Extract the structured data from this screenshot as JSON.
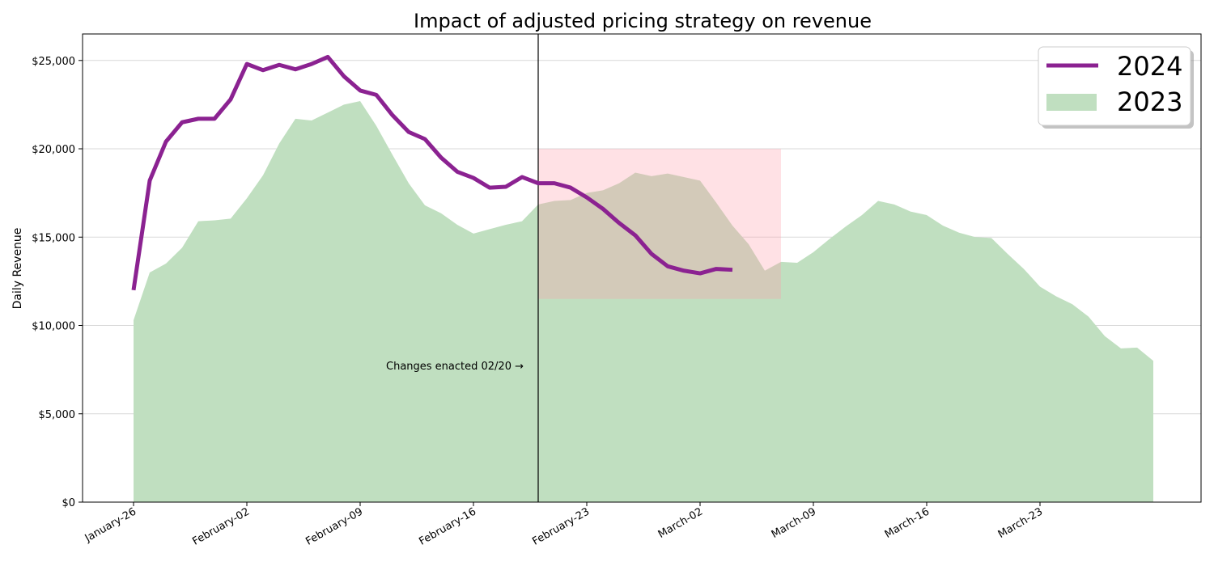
{
  "chart_data": {
    "type": "line",
    "title": "Impact of adjusted pricing strategy on revenue",
    "xlabel": "",
    "ylabel": "Daily Revenue",
    "ylim": [
      0,
      26500
    ],
    "x_start": "January-26",
    "y_ticks": [
      0,
      5000,
      10000,
      15000,
      20000,
      25000
    ],
    "y_tick_labels": [
      "$0",
      "$5,000",
      "$10,000",
      "$15,000",
      "$20,000",
      "$25,000"
    ],
    "x_tick_labels": [
      "January-26",
      "February-02",
      "February-09",
      "February-16",
      "February-23",
      "March-02",
      "March-09",
      "March-16",
      "March-23"
    ],
    "grid": "y",
    "legend_position": "top-right",
    "series": [
      {
        "name": "2024",
        "type": "line",
        "color": "#8b2291",
        "values": [
          12000,
          18200,
          20400,
          21500,
          21700,
          21700,
          22800,
          24800,
          24450,
          24750,
          24500,
          24800,
          25200,
          24100,
          23300,
          23050,
          21900,
          20950,
          20550,
          19500,
          18700,
          18350,
          17800,
          17850,
          18400,
          18050,
          18050,
          17800,
          17250,
          16600,
          15800,
          15100,
          14050,
          13350,
          13100,
          12950,
          13200,
          13150
        ]
      },
      {
        "name": "2023",
        "type": "area",
        "color": "#c0dfc0",
        "values": [
          10300,
          13000,
          13500,
          14400,
          15900,
          15950,
          16050,
          17200,
          18500,
          20300,
          21700,
          21600,
          22050,
          22500,
          22700,
          21300,
          19650,
          18050,
          16800,
          16350,
          15700,
          15200,
          15450,
          15700,
          15900,
          16850,
          17050,
          17100,
          17500,
          17650,
          18050,
          18650,
          18450,
          18600,
          18400,
          18200,
          16950,
          15650,
          14600,
          13100,
          13600,
          13550,
          14150,
          14900,
          15600,
          16250,
          17050,
          16850,
          16450,
          16250,
          15650,
          15250,
          15000,
          14950,
          14050,
          13200,
          12200,
          11650,
          11200,
          10500,
          9400,
          8700,
          8750,
          8000
        ]
      }
    ],
    "annotations": {
      "vline_day": 25,
      "vline_label": "Changes enacted 02/20 →",
      "highlight_rect": {
        "x_from_day": 25,
        "x_to_day": 40,
        "y_from": 11500,
        "y_to": 20000,
        "color": "#ffdde2"
      }
    }
  }
}
